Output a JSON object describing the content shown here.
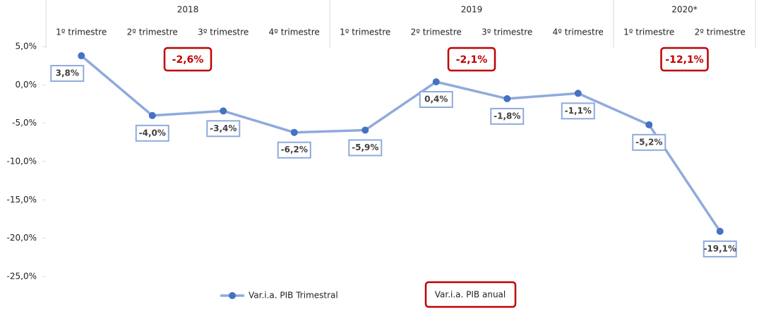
{
  "chart_data": {
    "type": "line",
    "groups": [
      {
        "name": "2018",
        "count": 4
      },
      {
        "name": "2019",
        "count": 4
      },
      {
        "name": "2020*",
        "count": 2
      }
    ],
    "categories": [
      "1º trimestre",
      "2º trimestre",
      "3º trimestre",
      "4º trimestre",
      "1º trimestre",
      "2º trimestre",
      "3º trimestre",
      "4º trimestre",
      "1º trimestre",
      "2º trimestre"
    ],
    "series": [
      {
        "name": "Var.i.a. PIB Trimestral",
        "color": "#8faadc",
        "marker_color": "#4472c4",
        "values": [
          3.8,
          -4.0,
          -3.4,
          -6.2,
          -5.9,
          0.4,
          -1.8,
          -1.1,
          -5.2,
          -19.1
        ],
        "value_labels": [
          "3,8%",
          "-4,0%",
          "-3,4%",
          "-6,2%",
          "-5,9%",
          "0,4%",
          "-1,8%",
          "-1,1%",
          "-5,2%",
          "-19,1%"
        ]
      }
    ],
    "annual": {
      "name": "Var.i.a. PIB anual",
      "color": "#c00000",
      "values": [
        -2.6,
        -2.1,
        -12.1
      ],
      "value_labels": [
        "-2,6%",
        "-2,1%",
        "-12,1%"
      ]
    },
    "ylim": [
      -25,
      5
    ],
    "yticks": [
      {
        "value": 5,
        "label": "5,0%"
      },
      {
        "value": 0,
        "label": "0,0%"
      },
      {
        "value": -5,
        "label": "-5,0%"
      },
      {
        "value": -10,
        "label": "-10,0%"
      },
      {
        "value": -15,
        "label": "-15,0%"
      },
      {
        "value": -20,
        "label": "-20,0%"
      },
      {
        "value": -25,
        "label": "-25,0%"
      }
    ]
  }
}
